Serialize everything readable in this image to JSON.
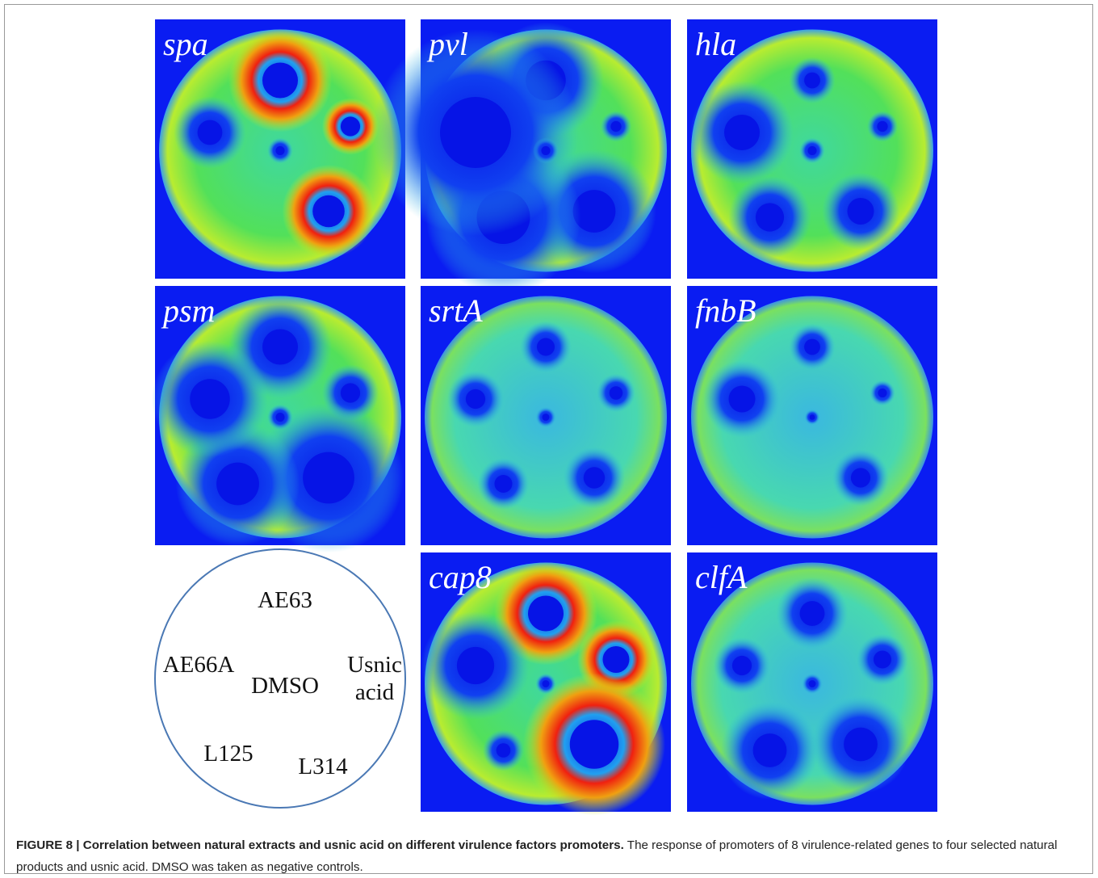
{
  "figure": {
    "panels": [
      {
        "label": "spa"
      },
      {
        "label": "pvl"
      },
      {
        "label": "hla"
      },
      {
        "label": "psm"
      },
      {
        "label": "srtA"
      },
      {
        "label": "fnbB"
      },
      {
        "label": "cap8"
      },
      {
        "label": "clfA"
      }
    ],
    "legend": {
      "top": "AE63",
      "left": "AE66A",
      "center": "DMSO",
      "right": "Usnic acid",
      "bottom_left": "L125",
      "bottom_right": "L314"
    },
    "caption": {
      "label": "FIGURE 8 | Correlation between natural extracts and usnic acid on different virulence factors promoters.",
      "text": "The response of promoters of 8 virulence-related genes to four selected natural products and usnic acid. DMSO was taken as negative controls."
    }
  }
}
